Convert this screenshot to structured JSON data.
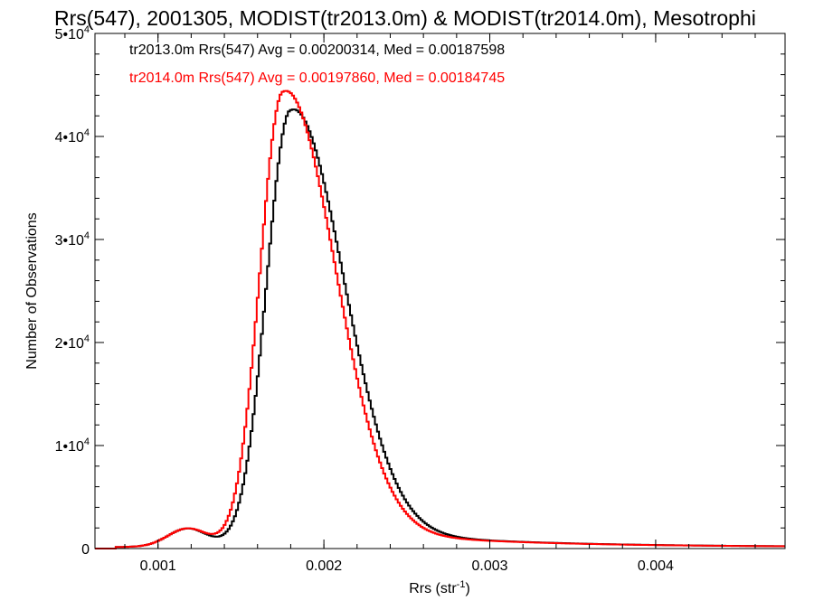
{
  "chart_data": {
    "type": "line",
    "title": "Rrs(547), 2001305, MODIST(tr2013.0m) & MODIST(tr2014.0m), Mesotrophi",
    "xlabel": "Rrs (str",
    "xlabel_sup": "-1",
    "xlabel_close": ")",
    "ylabel": "Number of Observations",
    "xlim": [
      0.00062,
      0.00478
    ],
    "ylim": [
      0,
      50000
    ],
    "xticks": [
      {
        "value": 0.001,
        "label": "0.001"
      },
      {
        "value": 0.002,
        "label": "0.002"
      },
      {
        "value": 0.003,
        "label": "0.003"
      },
      {
        "value": 0.004,
        "label": "0.004"
      }
    ],
    "yticks": [
      {
        "value": 0,
        "base": "0",
        "sup": ""
      },
      {
        "value": 10000,
        "base": "1•10",
        "sup": "4"
      },
      {
        "value": 20000,
        "base": "2•10",
        "sup": "4"
      },
      {
        "value": 30000,
        "base": "3•10",
        "sup": "4"
      },
      {
        "value": 40000,
        "base": "4•10",
        "sup": "4"
      },
      {
        "value": 50000,
        "base": "5•10",
        "sup": "4"
      }
    ],
    "grid": false,
    "legend_position": "top-left",
    "series": [
      {
        "name": "tr2013.0m",
        "color": "#000000",
        "legend": "tr2013.0m Rrs(547) Avg = 0.00200314, Med = 0.00187598",
        "peak": 0.0018,
        "sigma_left": 0.000145,
        "sigma_right": 0.00031,
        "peak_height": 42400
      },
      {
        "name": "tr2014.0m",
        "color": "#ff0000",
        "legend": "tr2014.0m Rrs(547) Avg = 0.00197860, Med = 0.00184745",
        "peak": 0.001755,
        "sigma_left": 0.00014,
        "sigma_right": 0.000305,
        "peak_height": 44200
      }
    ]
  }
}
